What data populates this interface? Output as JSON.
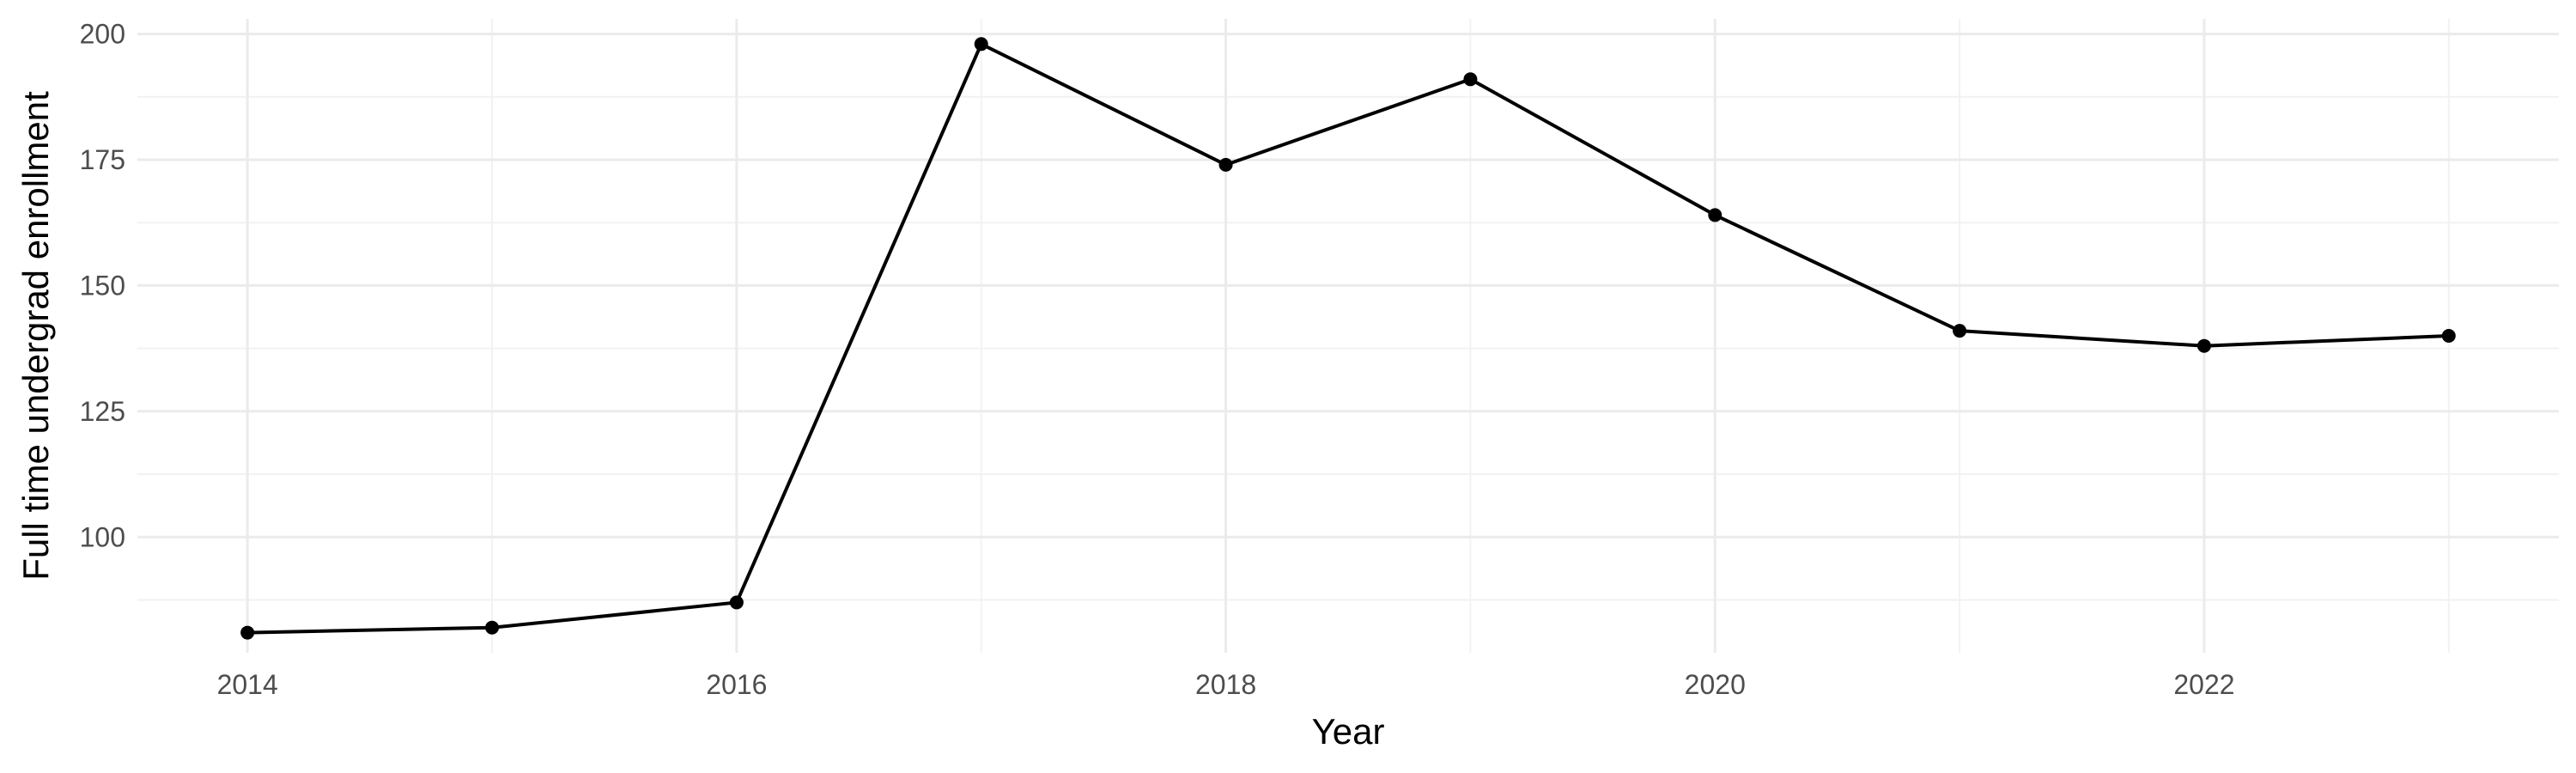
{
  "chart_data": {
    "type": "line",
    "title": "",
    "xlabel": "Year",
    "ylabel": "Full time undergrad enrollment",
    "x": [
      2014,
      2015,
      2016,
      2017,
      2018,
      2019,
      2020,
      2021,
      2022,
      2023
    ],
    "series": [
      {
        "values": [
          81,
          82,
          87,
          198,
          174,
          191,
          164,
          141,
          138,
          140
        ]
      }
    ],
    "xlim": [
      2013.55,
      2023.45
    ],
    "ylim": [
      77,
      203
    ],
    "x_ticks": [
      2014,
      2016,
      2018,
      2020,
      2022
    ],
    "x_tick_labels": [
      "2014",
      "2016",
      "2018",
      "2020",
      "2022"
    ],
    "x_minor_ticks": [
      2015,
      2017,
      2019,
      2021,
      2023
    ],
    "y_ticks": [
      100,
      125,
      150,
      175,
      200
    ],
    "y_tick_labels": [
      "100",
      "125",
      "150",
      "175",
      "200"
    ],
    "y_minor_ticks": [
      87.5,
      112.5,
      137.5,
      162.5,
      187.5
    ],
    "grid": true,
    "legend": "none",
    "colors": {
      "line": "#000000",
      "points": "#000000",
      "grid_major": "#ebebeb",
      "grid_minor": "#f2f2f2",
      "background": "#ffffff"
    }
  }
}
